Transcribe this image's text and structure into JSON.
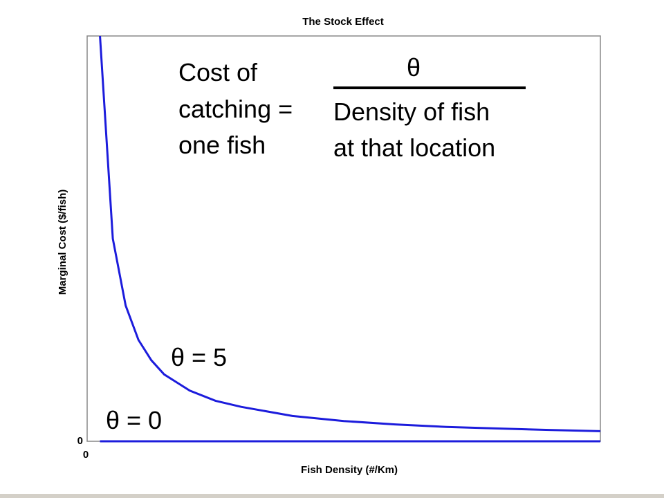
{
  "chart_data": {
    "type": "line",
    "title": "The Stock Effect",
    "xlabel": "Fish Density (#/Km)",
    "ylabel": "Marginal Cost ($/fish)",
    "x": [
      2.5,
      5,
      7.5,
      10,
      12.5,
      15,
      20,
      25,
      30,
      40,
      50,
      60,
      70,
      80,
      90,
      100
    ],
    "xlim": [
      0,
      100
    ],
    "ylim": [
      0,
      2
    ],
    "xticks": [
      0
    ],
    "yticks": [
      0
    ],
    "series": [
      {
        "name": "θ = 5",
        "color": "#1c1cdc",
        "values": [
          2,
          1,
          0.67,
          0.5,
          0.4,
          0.33,
          0.25,
          0.2,
          0.17,
          0.125,
          0.1,
          0.083,
          0.071,
          0.063,
          0.056,
          0.05
        ]
      },
      {
        "name": "θ = 0",
        "color": "#1c1cdc",
        "values": [
          0,
          0,
          0,
          0,
          0,
          0,
          0,
          0,
          0,
          0,
          0,
          0,
          0,
          0,
          0,
          0
        ]
      }
    ],
    "annotations": {
      "cost_text": [
        "Cost of",
        "catching =",
        "one fish"
      ],
      "numerator": "θ",
      "denominator": [
        "Density of fish",
        "at that location"
      ]
    }
  }
}
